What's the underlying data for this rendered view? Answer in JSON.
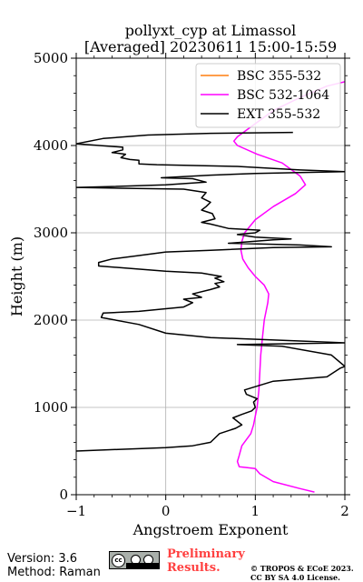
{
  "chart_data": {
    "type": "line",
    "title": "pollyxt_cyp at Limassol",
    "subtitle": "[Averaged] 20230611 15:00-15:59",
    "xlabel": "Angstroem Exponent",
    "ylabel": "Height (m)",
    "xlim": [
      -1,
      2
    ],
    "ylim": [
      0,
      5000
    ],
    "xticks": [
      -1,
      0,
      1,
      2
    ],
    "yticks": [
      0,
      1000,
      2000,
      3000,
      4000,
      5000
    ],
    "grid": true,
    "legend_position": "top-right",
    "series": [
      {
        "name": "BSC 355-532",
        "color": "#ff7f0e",
        "points": []
      },
      {
        "name": "BSC 532-1064",
        "color": "#ff00ff",
        "points": [
          [
            1.66,
            30
          ],
          [
            1.5,
            70
          ],
          [
            1.2,
            150
          ],
          [
            1.05,
            240
          ],
          [
            1.0,
            300
          ],
          [
            0.82,
            320
          ],
          [
            0.8,
            380
          ],
          [
            0.82,
            450
          ],
          [
            0.85,
            560
          ],
          [
            0.95,
            700
          ],
          [
            0.98,
            800
          ],
          [
            1.0,
            900
          ],
          [
            1.02,
            1000
          ],
          [
            1.04,
            1200
          ],
          [
            1.05,
            1400
          ],
          [
            1.06,
            1600
          ],
          [
            1.08,
            1800
          ],
          [
            1.1,
            2000
          ],
          [
            1.14,
            2200
          ],
          [
            1.15,
            2300
          ],
          [
            1.1,
            2400
          ],
          [
            1.0,
            2500
          ],
          [
            0.92,
            2600
          ],
          [
            0.86,
            2700
          ],
          [
            0.84,
            2800
          ],
          [
            0.85,
            2900
          ],
          [
            0.88,
            3000
          ],
          [
            1.0,
            3150
          ],
          [
            1.2,
            3300
          ],
          [
            1.45,
            3450
          ],
          [
            1.56,
            3550
          ],
          [
            1.5,
            3650
          ],
          [
            1.3,
            3800
          ],
          [
            1.02,
            3900
          ],
          [
            0.8,
            4000
          ],
          [
            0.76,
            4050
          ],
          [
            0.8,
            4100
          ],
          [
            1.0,
            4250
          ],
          [
            1.2,
            4400
          ],
          [
            1.5,
            4550
          ],
          [
            1.8,
            4680
          ],
          [
            2.0,
            4730
          ]
        ]
      },
      {
        "name": "EXT 355-532",
        "color": "#000000",
        "points": [
          [
            -1.0,
            500
          ],
          [
            -0.5,
            520
          ],
          [
            0.0,
            540
          ],
          [
            0.3,
            560
          ],
          [
            0.5,
            600
          ],
          [
            0.55,
            650
          ],
          [
            0.6,
            700
          ],
          [
            0.78,
            760
          ],
          [
            0.85,
            800
          ],
          [
            0.75,
            880
          ],
          [
            0.85,
            920
          ],
          [
            0.96,
            960
          ],
          [
            1.0,
            1000
          ],
          [
            0.98,
            1060
          ],
          [
            1.02,
            1100
          ],
          [
            0.9,
            1150
          ],
          [
            0.88,
            1200
          ],
          [
            1.2,
            1300
          ],
          [
            1.8,
            1350
          ],
          [
            1.95,
            1450
          ],
          [
            2.0,
            1470
          ],
          [
            1.85,
            1600
          ],
          [
            1.3,
            1700
          ],
          [
            0.8,
            1720
          ],
          [
            2.0,
            1740
          ],
          [
            1.5,
            1760
          ],
          [
            0.5,
            1800
          ],
          [
            0.0,
            1850
          ],
          [
            -0.3,
            1950
          ],
          [
            -0.72,
            2030
          ],
          [
            -0.7,
            2080
          ],
          [
            -0.3,
            2100
          ],
          [
            0.0,
            2130
          ],
          [
            0.2,
            2150
          ],
          [
            0.3,
            2200
          ],
          [
            0.2,
            2240
          ],
          [
            0.4,
            2260
          ],
          [
            0.3,
            2300
          ],
          [
            0.5,
            2350
          ],
          [
            0.6,
            2380
          ],
          [
            0.55,
            2420
          ],
          [
            0.65,
            2440
          ],
          [
            0.55,
            2480
          ],
          [
            0.62,
            2500
          ],
          [
            0.4,
            2540
          ],
          [
            0.0,
            2560
          ],
          [
            -0.5,
            2600
          ],
          [
            -0.75,
            2620
          ],
          [
            -0.75,
            2660
          ],
          [
            -0.6,
            2700
          ],
          [
            -0.3,
            2740
          ],
          [
            0.0,
            2780
          ],
          [
            0.5,
            2800
          ],
          [
            1.2,
            2830
          ],
          [
            1.85,
            2840
          ],
          [
            1.5,
            2860
          ],
          [
            0.7,
            2880
          ],
          [
            1.2,
            2920
          ],
          [
            1.4,
            2930
          ],
          [
            1.0,
            2950
          ],
          [
            0.8,
            2980
          ],
          [
            1.0,
            3000
          ],
          [
            1.05,
            3030
          ],
          [
            0.7,
            3050
          ],
          [
            0.5,
            3100
          ],
          [
            0.4,
            3120
          ],
          [
            0.55,
            3160
          ],
          [
            0.52,
            3220
          ],
          [
            0.4,
            3260
          ],
          [
            0.45,
            3300
          ],
          [
            0.5,
            3350
          ],
          [
            0.4,
            3400
          ],
          [
            0.45,
            3460
          ],
          [
            0.2,
            3500
          ],
          [
            -0.5,
            3510
          ],
          [
            -1.0,
            3520
          ],
          [
            -0.6,
            3530
          ],
          [
            0.0,
            3550
          ],
          [
            0.45,
            3580
          ],
          [
            0.3,
            3620
          ],
          [
            -0.05,
            3630
          ],
          [
            0.5,
            3660
          ],
          [
            1.0,
            3680
          ],
          [
            2.0,
            3700
          ],
          [
            1.5,
            3720
          ],
          [
            0.8,
            3760
          ],
          [
            -0.1,
            3780
          ],
          [
            -0.3,
            3790
          ],
          [
            -0.3,
            3830
          ],
          [
            -0.4,
            3840
          ],
          [
            -0.5,
            3860
          ],
          [
            -0.45,
            3900
          ],
          [
            -0.6,
            3920
          ],
          [
            -0.48,
            3950
          ],
          [
            -0.48,
            3980
          ],
          [
            -1.0,
            4020
          ],
          [
            -0.7,
            4080
          ],
          [
            -0.2,
            4120
          ],
          [
            0.5,
            4140
          ],
          [
            1.42,
            4150
          ]
        ]
      }
    ]
  },
  "footer": {
    "version": "Version: 3.6",
    "method": "Method: Raman",
    "preliminary_line1": "Preliminary",
    "preliminary_line2": "Results.",
    "preliminary_color": "#ff4040",
    "credit_line1": "© TROPOS & ECoE 2023.",
    "credit_line2": "CC BY SA 4.0 License."
  },
  "license_badge_icon": "cc-by-sa-badge-icon"
}
